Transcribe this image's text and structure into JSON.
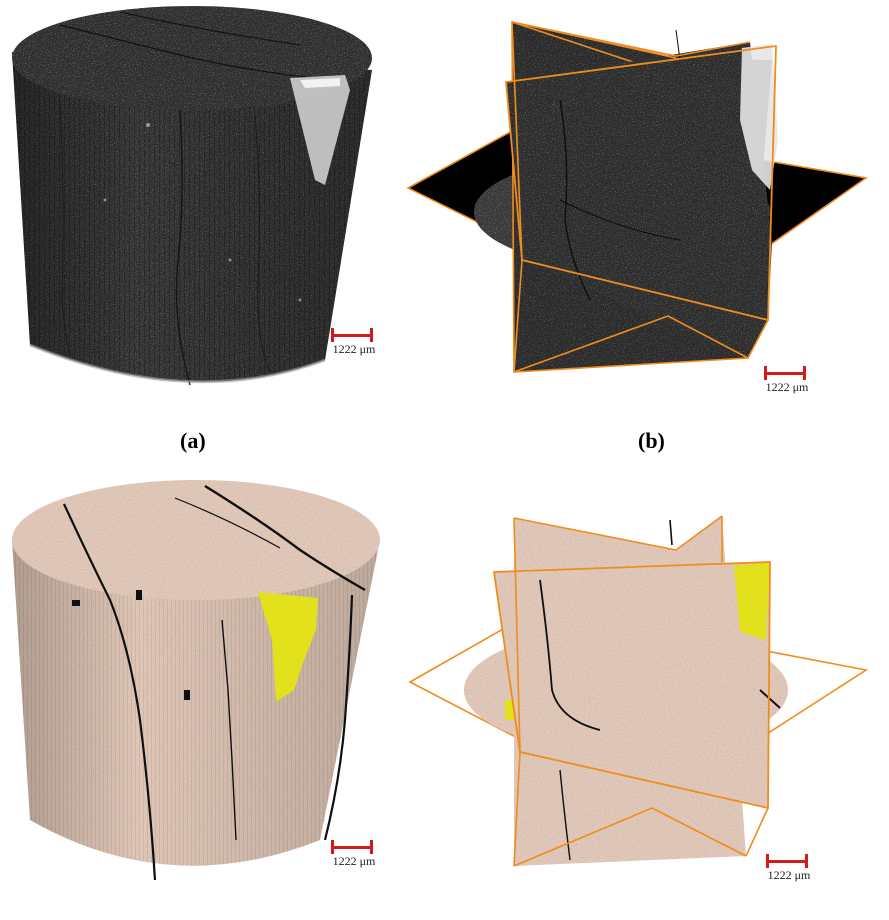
{
  "figure": {
    "panels": [
      {
        "label": "(a)",
        "content": "grayscale-cylinder",
        "scale_text": "1222 μm"
      },
      {
        "label": "(b)",
        "content": "grayscale-orthoslices",
        "scale_text": "1222 μm"
      },
      {
        "label": "",
        "content": "segmented-cylinder",
        "scale_text": "1222 μm"
      },
      {
        "label": "",
        "content": "segmented-orthoslices",
        "scale_text": "1222 μm"
      }
    ]
  },
  "colors": {
    "frame": "#f08c1e",
    "scalebar": "#d21c1c",
    "gray_volume": "#2e2e2e",
    "pink_phase": "#e7c6c0",
    "green_phase": "#6fa63a",
    "yellow_phase": "#e3e11b",
    "crack": "#101010"
  }
}
